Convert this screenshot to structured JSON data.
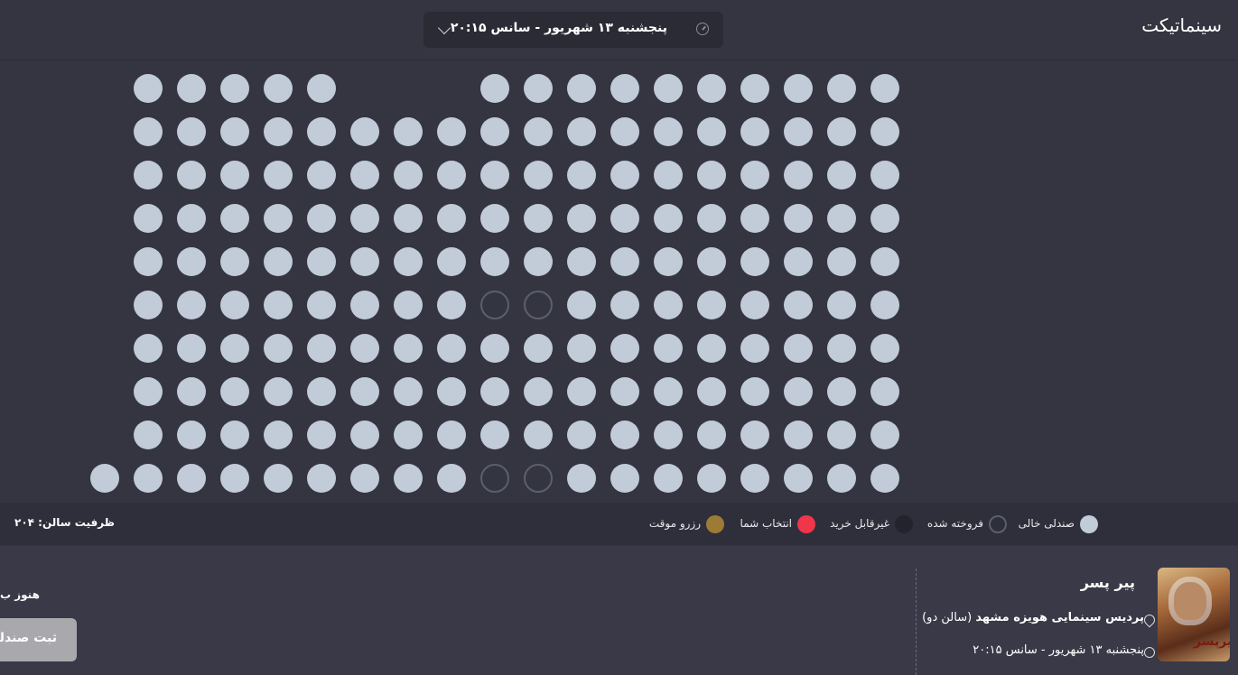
{
  "brand": {
    "logo_text": "سینماتیکت"
  },
  "session": {
    "label": "پنجشنبه ۱۳ شهریور - سانس ۲۰:۱۵"
  },
  "seat_map": {
    "rows": [
      {
        "cols": [
          3,
          4,
          5,
          6,
          7,
          11,
          12,
          13,
          14,
          15,
          16,
          17,
          18,
          19,
          20
        ],
        "sold": []
      },
      {
        "cols": [
          3,
          4,
          5,
          6,
          7,
          8,
          9,
          10,
          11,
          12,
          13,
          14,
          15,
          16,
          17,
          18,
          19,
          20
        ],
        "sold": []
      },
      {
        "cols": [
          3,
          4,
          5,
          6,
          7,
          8,
          9,
          10,
          11,
          12,
          13,
          14,
          15,
          16,
          17,
          18,
          19,
          20
        ],
        "sold": []
      },
      {
        "cols": [
          3,
          4,
          5,
          6,
          7,
          8,
          9,
          10,
          11,
          12,
          13,
          14,
          15,
          16,
          17,
          18,
          19,
          20
        ],
        "sold": []
      },
      {
        "cols": [
          3,
          4,
          5,
          6,
          7,
          8,
          9,
          10,
          11,
          12,
          13,
          14,
          15,
          16,
          17,
          18,
          19,
          20
        ],
        "sold": []
      },
      {
        "cols": [
          3,
          4,
          5,
          6,
          7,
          8,
          9,
          10,
          11,
          12,
          13,
          14,
          15,
          16,
          17,
          18,
          19,
          20
        ],
        "sold": [
          11,
          12
        ]
      },
      {
        "cols": [
          3,
          4,
          5,
          6,
          7,
          8,
          9,
          10,
          11,
          12,
          13,
          14,
          15,
          16,
          17,
          18,
          19,
          20
        ],
        "sold": []
      },
      {
        "cols": [
          3,
          4,
          5,
          6,
          7,
          8,
          9,
          10,
          11,
          12,
          13,
          14,
          15,
          16,
          17,
          18,
          19,
          20
        ],
        "sold": []
      },
      {
        "cols": [
          3,
          4,
          5,
          6,
          7,
          8,
          9,
          10,
          11,
          12,
          13,
          14,
          15,
          16,
          17,
          18,
          19,
          20
        ],
        "sold": []
      },
      {
        "cols": [
          2,
          3,
          4,
          5,
          6,
          7,
          8,
          9,
          10,
          11,
          12,
          13,
          14,
          15,
          16,
          17,
          18,
          19,
          20
        ],
        "sold": [
          11,
          12
        ]
      }
    ]
  },
  "legend": {
    "free": {
      "label": "صندلی خالی",
      "color": "#c2cbd8"
    },
    "sold": {
      "label": "فروخته شده",
      "color": "#5b5f6d"
    },
    "unavailable": {
      "label": "غیرقابل خرید",
      "color": "#23232d"
    },
    "selected": {
      "label": "انتخاب شما",
      "color": "#f0364a"
    },
    "reserved": {
      "label": "رزرو موقت",
      "color": "#9d7b35"
    }
  },
  "capacity": {
    "text": "ظرفیت سالن: ۲۰۴"
  },
  "movie": {
    "title": "پیر پسر",
    "poster_title": "پیرپسر",
    "venue": "پردیس سینمایی هویزه مشهد",
    "hall": "(سالن دو)",
    "datetime": "پنجشنبه ۱۳ شهریور - سانس ۲۰:۱۵"
  },
  "booking": {
    "status_text": "هنوز ب",
    "submit_label": "ثبت صندلی"
  }
}
